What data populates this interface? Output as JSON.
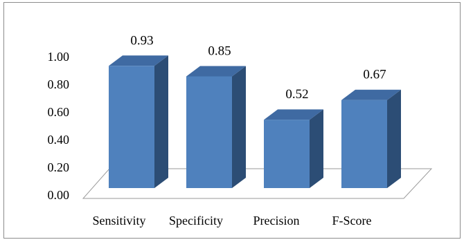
{
  "chart_data": {
    "type": "bar",
    "style": "3d-column",
    "categories": [
      "Sensitivity",
      "Specificity",
      "Precision",
      "F-Score"
    ],
    "values": [
      0.93,
      0.85,
      0.52,
      0.67
    ],
    "data_labels": [
      "0.93",
      "0.85",
      "0.52",
      "0.67"
    ],
    "ylim": [
      0,
      1
    ],
    "yticks": [
      0,
      0.2,
      0.4,
      0.6,
      0.8,
      1.0
    ],
    "ytick_labels": [
      "0.00",
      "0.20",
      "0.40",
      "0.60",
      "0.80",
      "1.00"
    ],
    "grid": false,
    "legend": "none",
    "colors": {
      "bar_front": "#4f81bd",
      "bar_top": "#3f6aa2",
      "bar_side": "#2c4d75",
      "floor_line": "#9a9a9a",
      "frame_border": "#8c8c8c"
    }
  }
}
